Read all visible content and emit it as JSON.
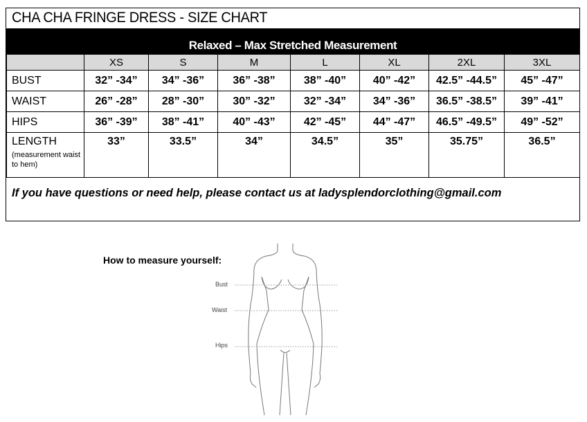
{
  "title": "CHA CHA FRINGE DRESS - SIZE CHART",
  "subtitle": "Relaxed – Max Stretched Measurement",
  "sizes": [
    "XS",
    "S",
    "M",
    "L",
    "XL",
    "2XL",
    "3XL"
  ],
  "rows": [
    {
      "label": "BUST",
      "values": [
        "32” -34”",
        "34” -36”",
        "36” -38”",
        "38” -40”",
        "40” -42”",
        "42.5” -44.5”",
        "45” -47”"
      ]
    },
    {
      "label": "WAIST",
      "values": [
        "26” -28”",
        "28” -30”",
        "30” -32”",
        "32” -34”",
        "34” -36”",
        "36.5” -38.5”",
        "39” -41”"
      ]
    },
    {
      "label": "HIPS",
      "values": [
        "36” -39”",
        "38” -41”",
        "40” -43”",
        "42” -45”",
        "44” -47”",
        "46.5” -49.5”",
        "49” -52”"
      ]
    },
    {
      "label": "LENGTH",
      "sublabel": "(measurement waist to hem)",
      "values": [
        "33”",
        "33.5”",
        "34”",
        "34.5”",
        "35”",
        "35.75”",
        "36.5”"
      ]
    }
  ],
  "note": "If you have questions or need help, please contact us at ladysplendorclothing@gmail.com",
  "figure": {
    "heading": "How to measure yourself:",
    "labels": {
      "bust": "Bust",
      "waist": "Waist",
      "hips": "Hips"
    }
  }
}
